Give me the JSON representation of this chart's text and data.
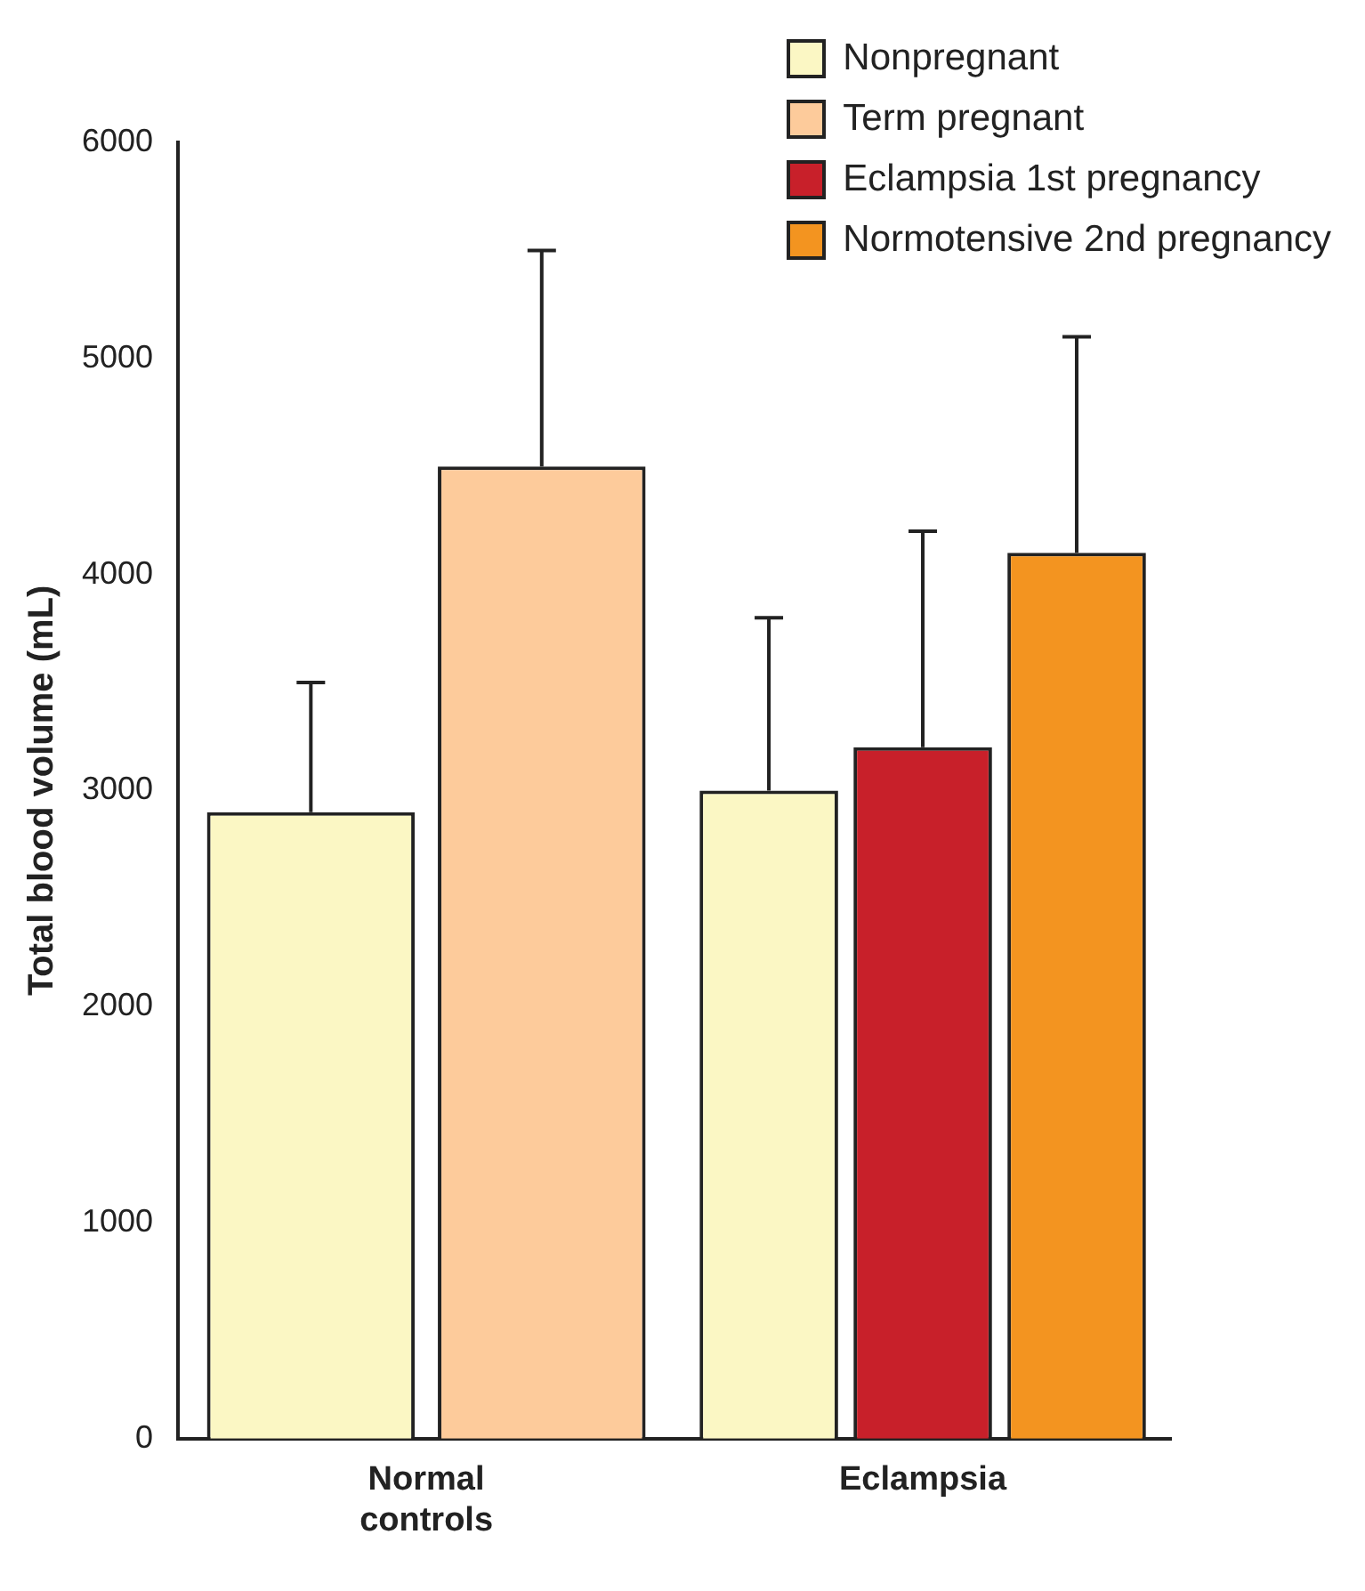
{
  "chart_data": {
    "type": "bar",
    "ylabel": "Total blood volume (mL)",
    "categories": [
      "Normal controls",
      "Eclampsia"
    ],
    "series": [
      {
        "name": "Nonpregnant",
        "color": "#fbf7c4",
        "values": [
          2900,
          3000
        ],
        "errors": [
          [
            2900,
            3500
          ],
          [
            3000,
            3800
          ]
        ]
      },
      {
        "name": "Term pregnant",
        "color": "#fdcb9b",
        "values": [
          4500,
          null
        ],
        "errors": [
          [
            4500,
            5500
          ],
          null
        ]
      },
      {
        "name": "Eclampsia 1st pregnancy",
        "color": "#c8202a",
        "values": [
          null,
          3200
        ],
        "errors": [
          null,
          [
            3200,
            4200
          ]
        ]
      },
      {
        "name": "Normotensive 2nd pregnancy",
        "color": "#f39420",
        "values": [
          null,
          4100
        ],
        "errors": [
          null,
          [
            4100,
            5100
          ]
        ]
      }
    ],
    "ylim": [
      0,
      6000
    ],
    "yticks": [
      0,
      1000,
      2000,
      3000,
      4000,
      5000,
      6000
    ],
    "grid": false,
    "legend": "top right"
  }
}
